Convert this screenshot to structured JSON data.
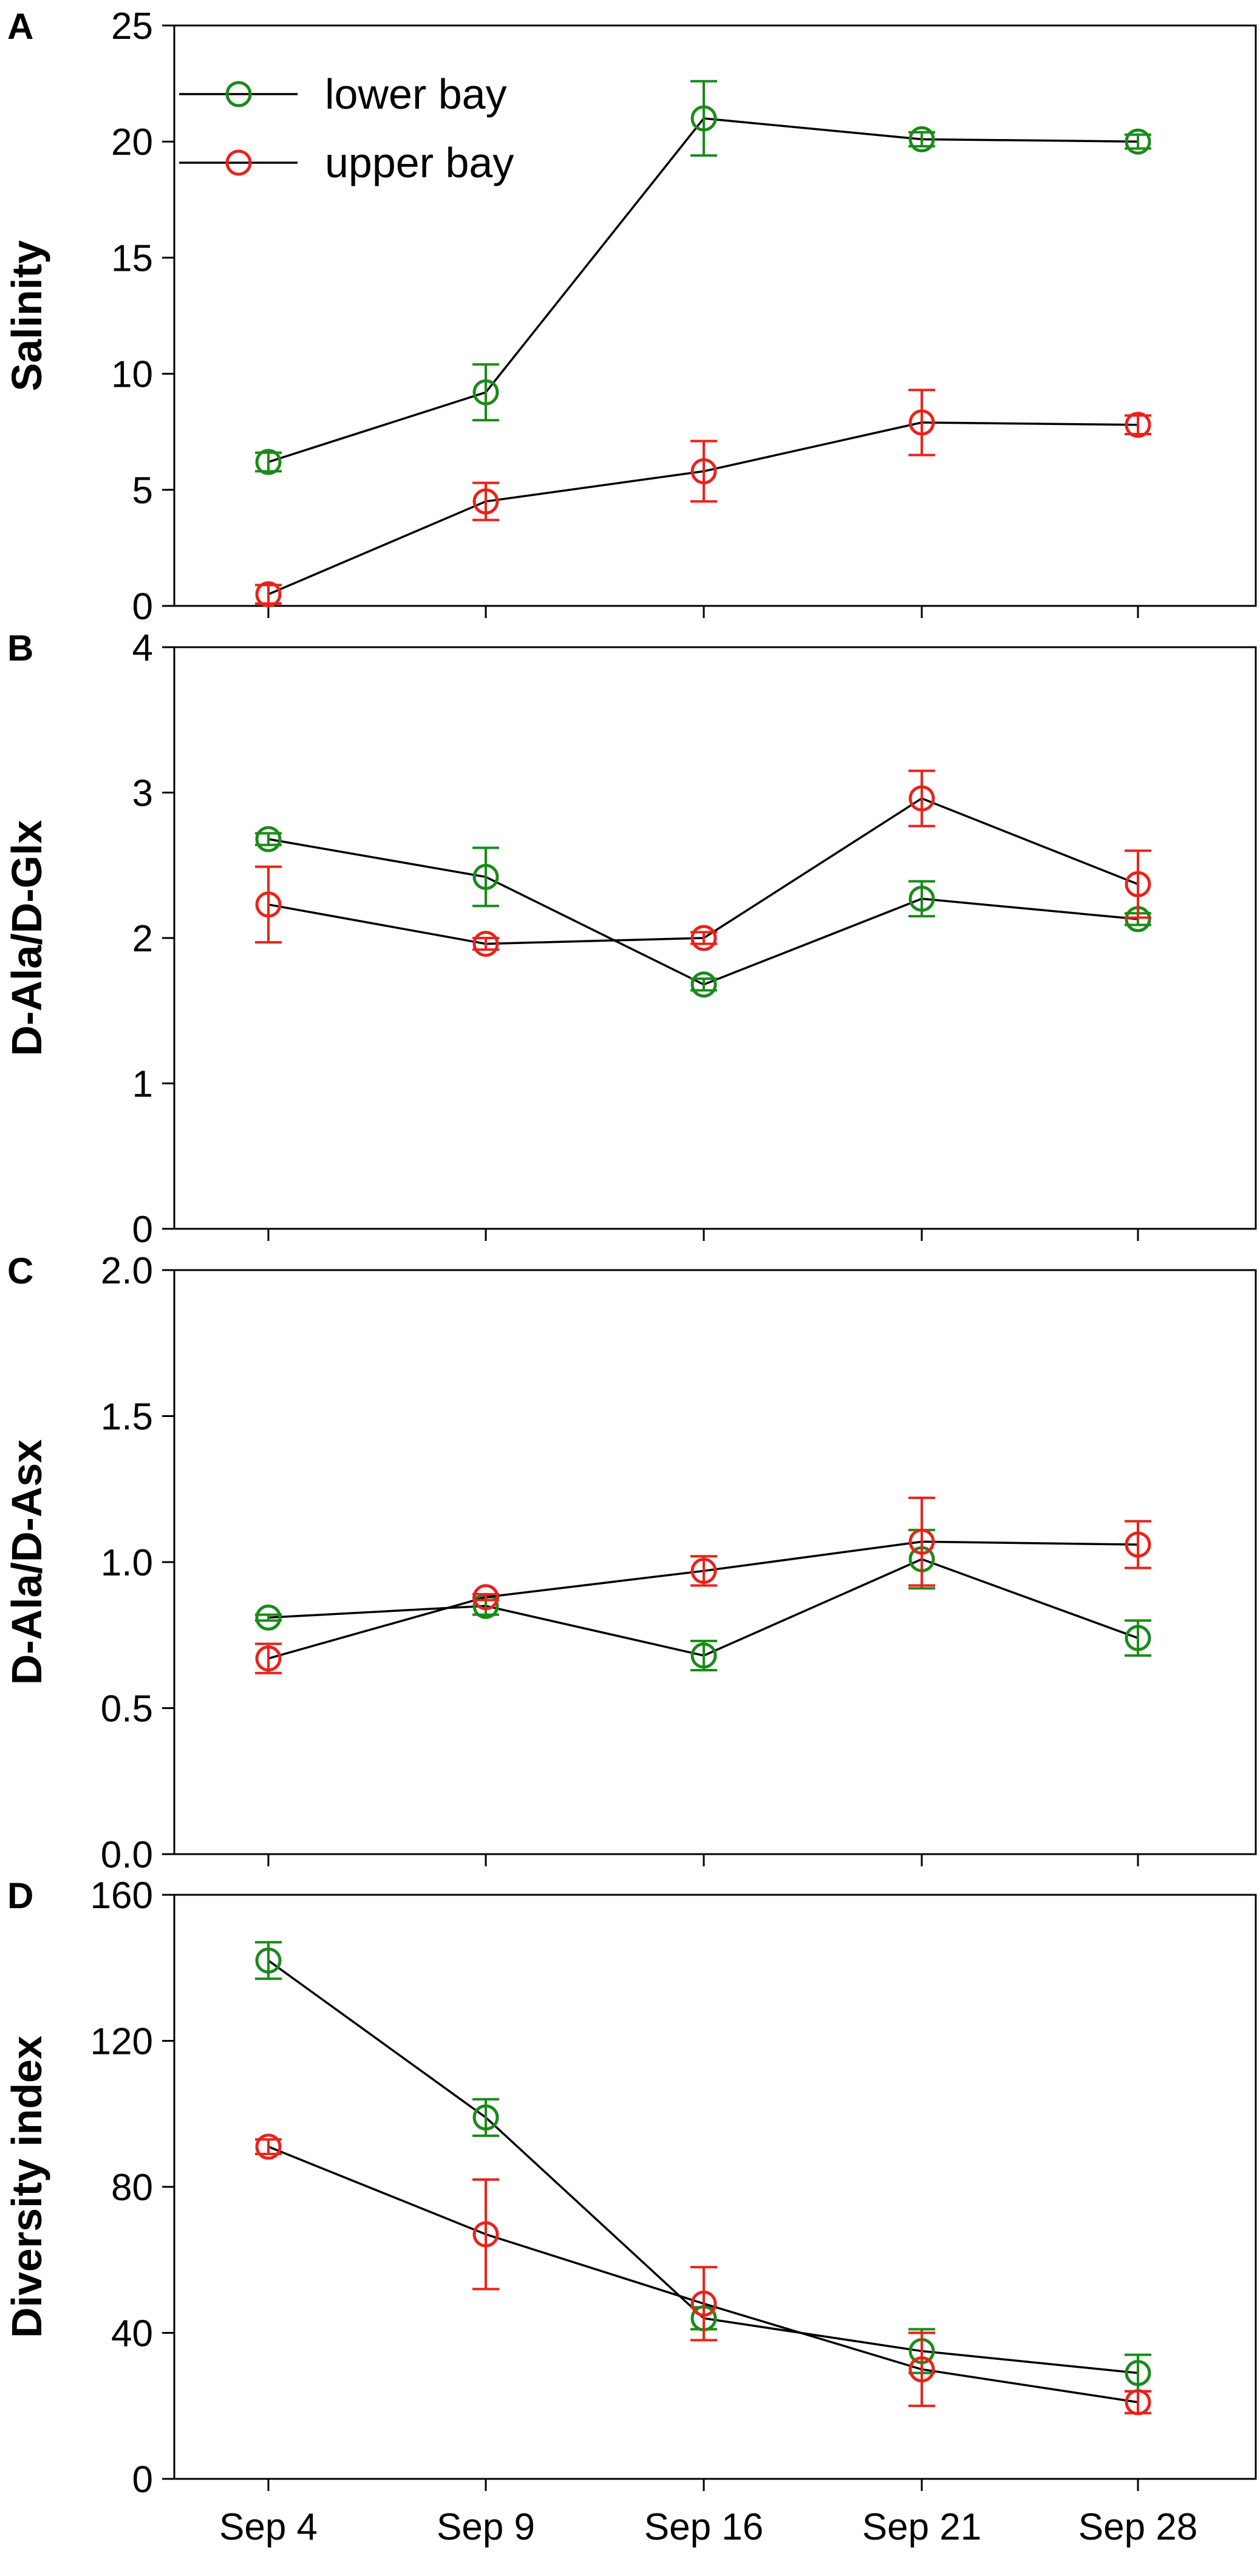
{
  "colors": {
    "lower bay": "#1a8a1a",
    "upper bay": "#e8231b",
    "axis": "#000000",
    "connector": "#000000"
  },
  "chart_data": {
    "type": "line",
    "categories": [
      "Sep 4",
      "Sep 9",
      "Sep 16",
      "Sep 21",
      "Sep 28"
    ],
    "legend": {
      "entries": [
        "lower bay",
        "upper bay"
      ],
      "placement": "top-left"
    },
    "panels": [
      {
        "letter": "A",
        "ylabel": "Salinity",
        "ylim": [
          0,
          25
        ],
        "yticks": [
          0,
          5,
          10,
          15,
          20,
          25
        ],
        "ytick_labels": [
          "0",
          "5",
          "10",
          "15",
          "20",
          "25"
        ],
        "series": [
          {
            "name": "lower bay",
            "values": [
              6.2,
              9.2,
              21.0,
              20.1,
              20.0
            ],
            "errors": [
              0.4,
              1.2,
              1.6,
              0.3,
              0.3
            ]
          },
          {
            "name": "upper bay",
            "values": [
              0.5,
              4.5,
              5.8,
              7.9,
              7.8
            ],
            "errors": [
              0.4,
              0.8,
              1.3,
              1.4,
              0.4
            ]
          }
        ]
      },
      {
        "letter": "B",
        "ylabel": "D-Ala/D-Glx",
        "ylim": [
          0,
          4
        ],
        "yticks": [
          0,
          1,
          2,
          3,
          4
        ],
        "ytick_labels": [
          "0",
          "1",
          "2",
          "3",
          "4"
        ],
        "series": [
          {
            "name": "lower bay",
            "values": [
              2.68,
              2.42,
              1.68,
              2.27,
              2.13
            ],
            "errors": [
              0.04,
              0.2,
              0.04,
              0.12,
              0.04
            ]
          },
          {
            "name": "upper bay",
            "values": [
              2.23,
              1.96,
              2.0,
              2.96,
              2.37
            ],
            "errors": [
              0.26,
              0.04,
              0.04,
              0.19,
              0.23
            ]
          }
        ]
      },
      {
        "letter": "C",
        "ylabel": "D-Ala/D-Asx",
        "ylim": [
          0,
          2
        ],
        "yticks": [
          0,
          0.5,
          1.0,
          1.5,
          2.0
        ],
        "ytick_labels": [
          "0.0",
          "0.5",
          "1.0",
          "1.5",
          "2.0"
        ],
        "series": [
          {
            "name": "lower bay",
            "values": [
              0.81,
              0.85,
              0.68,
              1.01,
              0.74
            ],
            "errors": [
              0.01,
              0.03,
              0.05,
              0.1,
              0.06
            ]
          },
          {
            "name": "upper bay",
            "values": [
              0.67,
              0.88,
              0.97,
              1.07,
              1.06
            ],
            "errors": [
              0.05,
              0.01,
              0.05,
              0.15,
              0.08
            ]
          }
        ]
      },
      {
        "letter": "D",
        "ylabel": "Diversity index",
        "ylim": [
          0,
          160
        ],
        "yticks": [
          0,
          40,
          80,
          120,
          160
        ],
        "ytick_labels": [
          "0",
          "40",
          "80",
          "120",
          "160"
        ],
        "series": [
          {
            "name": "lower bay",
            "values": [
              142,
              99,
              44,
              35,
              29
            ],
            "errors": [
              5,
              5,
              3,
              6,
              5
            ]
          },
          {
            "name": "upper bay",
            "values": [
              91,
              67,
              48,
              30,
              21
            ],
            "errors": [
              2,
              15,
              10,
              10,
              3
            ]
          }
        ]
      }
    ]
  }
}
